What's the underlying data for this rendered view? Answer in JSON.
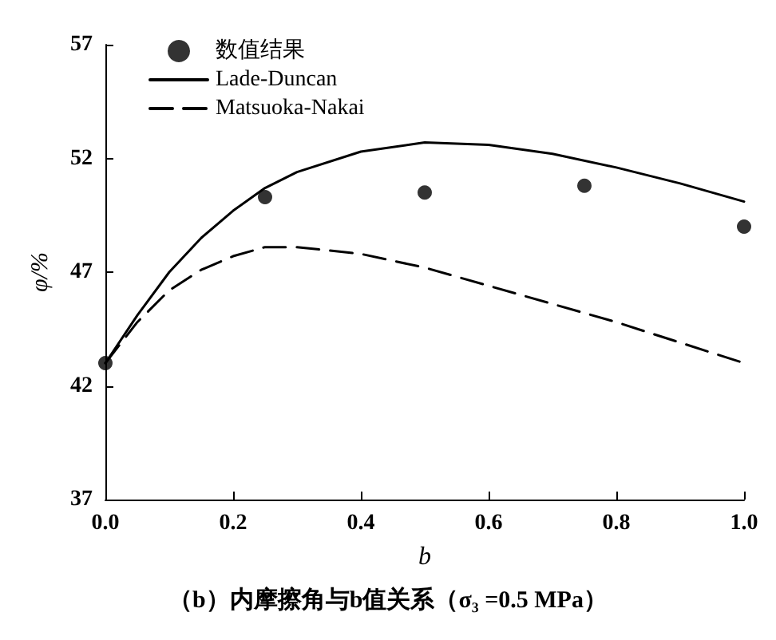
{
  "chart_data": {
    "type": "line",
    "title": "（b）内摩擦角与b值关系（σ₃ =0.5 MPa）",
    "xlabel": "b",
    "ylabel": "φ/%",
    "xlim": [
      0,
      1
    ],
    "xticks": [
      {
        "value": 0,
        "label": "0.0"
      },
      0.2,
      0.4,
      0.6,
      0.8,
      {
        "value": 1,
        "label": "1.0"
      }
    ],
    "ylim": [
      37,
      57
    ],
    "yticks": [
      37,
      42,
      47,
      52,
      57
    ],
    "grid": false,
    "legend": "top left",
    "series": [
      {
        "name": "数值结果",
        "type": "scatter",
        "color": "#000000",
        "marker": "circle",
        "x": [
          0,
          0.25,
          0.5,
          0.75,
          1.0
        ],
        "values": [
          43.0,
          50.3,
          50.5,
          50.8,
          49.0
        ]
      },
      {
        "name": "Lade-Duncan",
        "type": "line",
        "color": "#000000",
        "line_style": "solid",
        "marker": "none",
        "x": [
          0,
          0.05,
          0.1,
          0.15,
          0.2,
          0.25,
          0.3,
          0.4,
          0.5,
          0.6,
          0.7,
          0.8,
          0.9,
          1.0
        ],
        "values": [
          43.0,
          45.1,
          47.0,
          48.5,
          49.7,
          50.7,
          51.4,
          52.3,
          52.7,
          52.6,
          52.2,
          51.6,
          50.9,
          50.1
        ]
      },
      {
        "name": "Matsuoka-Nakai",
        "type": "line",
        "color": "#000000",
        "line_style": "dashed",
        "marker": "none",
        "x": [
          0,
          0.05,
          0.1,
          0.15,
          0.2,
          0.25,
          0.3,
          0.4,
          0.5,
          0.6,
          0.7,
          0.8,
          0.9,
          1.0
        ],
        "values": [
          43.0,
          44.8,
          46.2,
          47.1,
          47.7,
          48.1,
          48.1,
          47.8,
          47.2,
          46.4,
          45.6,
          44.8,
          43.9,
          43.0
        ]
      }
    ]
  }
}
